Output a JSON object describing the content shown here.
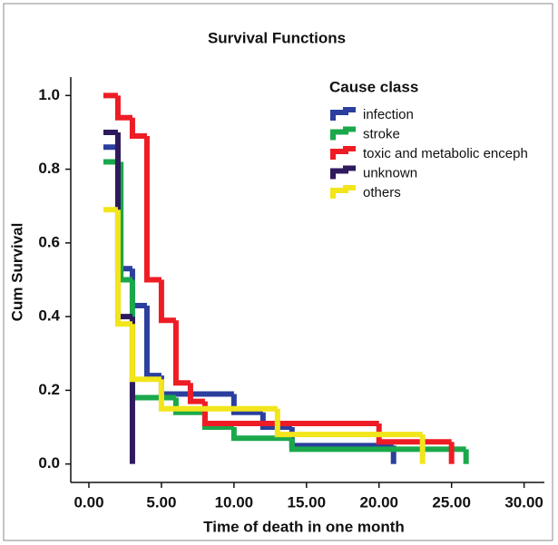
{
  "chart_data": {
    "type": "step",
    "title": "Survival Functions",
    "xlabel": "Time of death in one month",
    "ylabel": "Cum Survival",
    "legend_title": "Cause class",
    "xlim": [
      -1.25,
      31.4
    ],
    "ylim": [
      -0.05,
      1.05
    ],
    "xticks": [
      {
        "value": 0,
        "label": "0.00"
      },
      {
        "value": 5,
        "label": "5.00"
      },
      {
        "value": 10,
        "label": "10.00"
      },
      {
        "value": 15,
        "label": "15.00"
      },
      {
        "value": 20,
        "label": "20.00"
      },
      {
        "value": 25,
        "label": "25.00"
      },
      {
        "value": 30,
        "label": "30.00"
      }
    ],
    "yticks": [
      {
        "value": 0,
        "label": "0.0"
      },
      0.2,
      0.4,
      0.6,
      0.8,
      {
        "value": 1,
        "label": "1.0"
      }
    ],
    "series": [
      {
        "name": "infection",
        "color": "#2b3f9e",
        "x": [
          1,
          2,
          3,
          4,
          5,
          10,
          12,
          14,
          21
        ],
        "values": [
          0.86,
          0.53,
          0.43,
          0.24,
          0.19,
          0.14,
          0.1,
          0.05,
          0
        ]
      },
      {
        "name": "stroke",
        "color": "#1aa84b",
        "x": [
          1,
          2.2,
          3,
          6,
          8,
          10,
          14,
          26
        ],
        "values": [
          0.82,
          0.5,
          0.18,
          0.14,
          0.1,
          0.07,
          0.04,
          0
        ]
      },
      {
        "name": "toxic and metabolic enceph",
        "color": "#ee1c25",
        "x": [
          1,
          2,
          3,
          4,
          5,
          6,
          7,
          8,
          20,
          25
        ],
        "values": [
          1,
          0.94,
          0.89,
          0.5,
          0.39,
          0.22,
          0.17,
          0.11,
          0.06,
          0
        ]
      },
      {
        "name": "unknown",
        "color": "#2e1a5c",
        "x": [
          1,
          2,
          3
        ],
        "values": [
          0.9,
          0.4,
          0
        ]
      },
      {
        "name": "others",
        "color": "#f2e51b",
        "x": [
          1,
          2,
          3,
          5,
          13,
          23
        ],
        "values": [
          0.69,
          0.38,
          0.23,
          0.15,
          0.08,
          0
        ]
      }
    ]
  }
}
